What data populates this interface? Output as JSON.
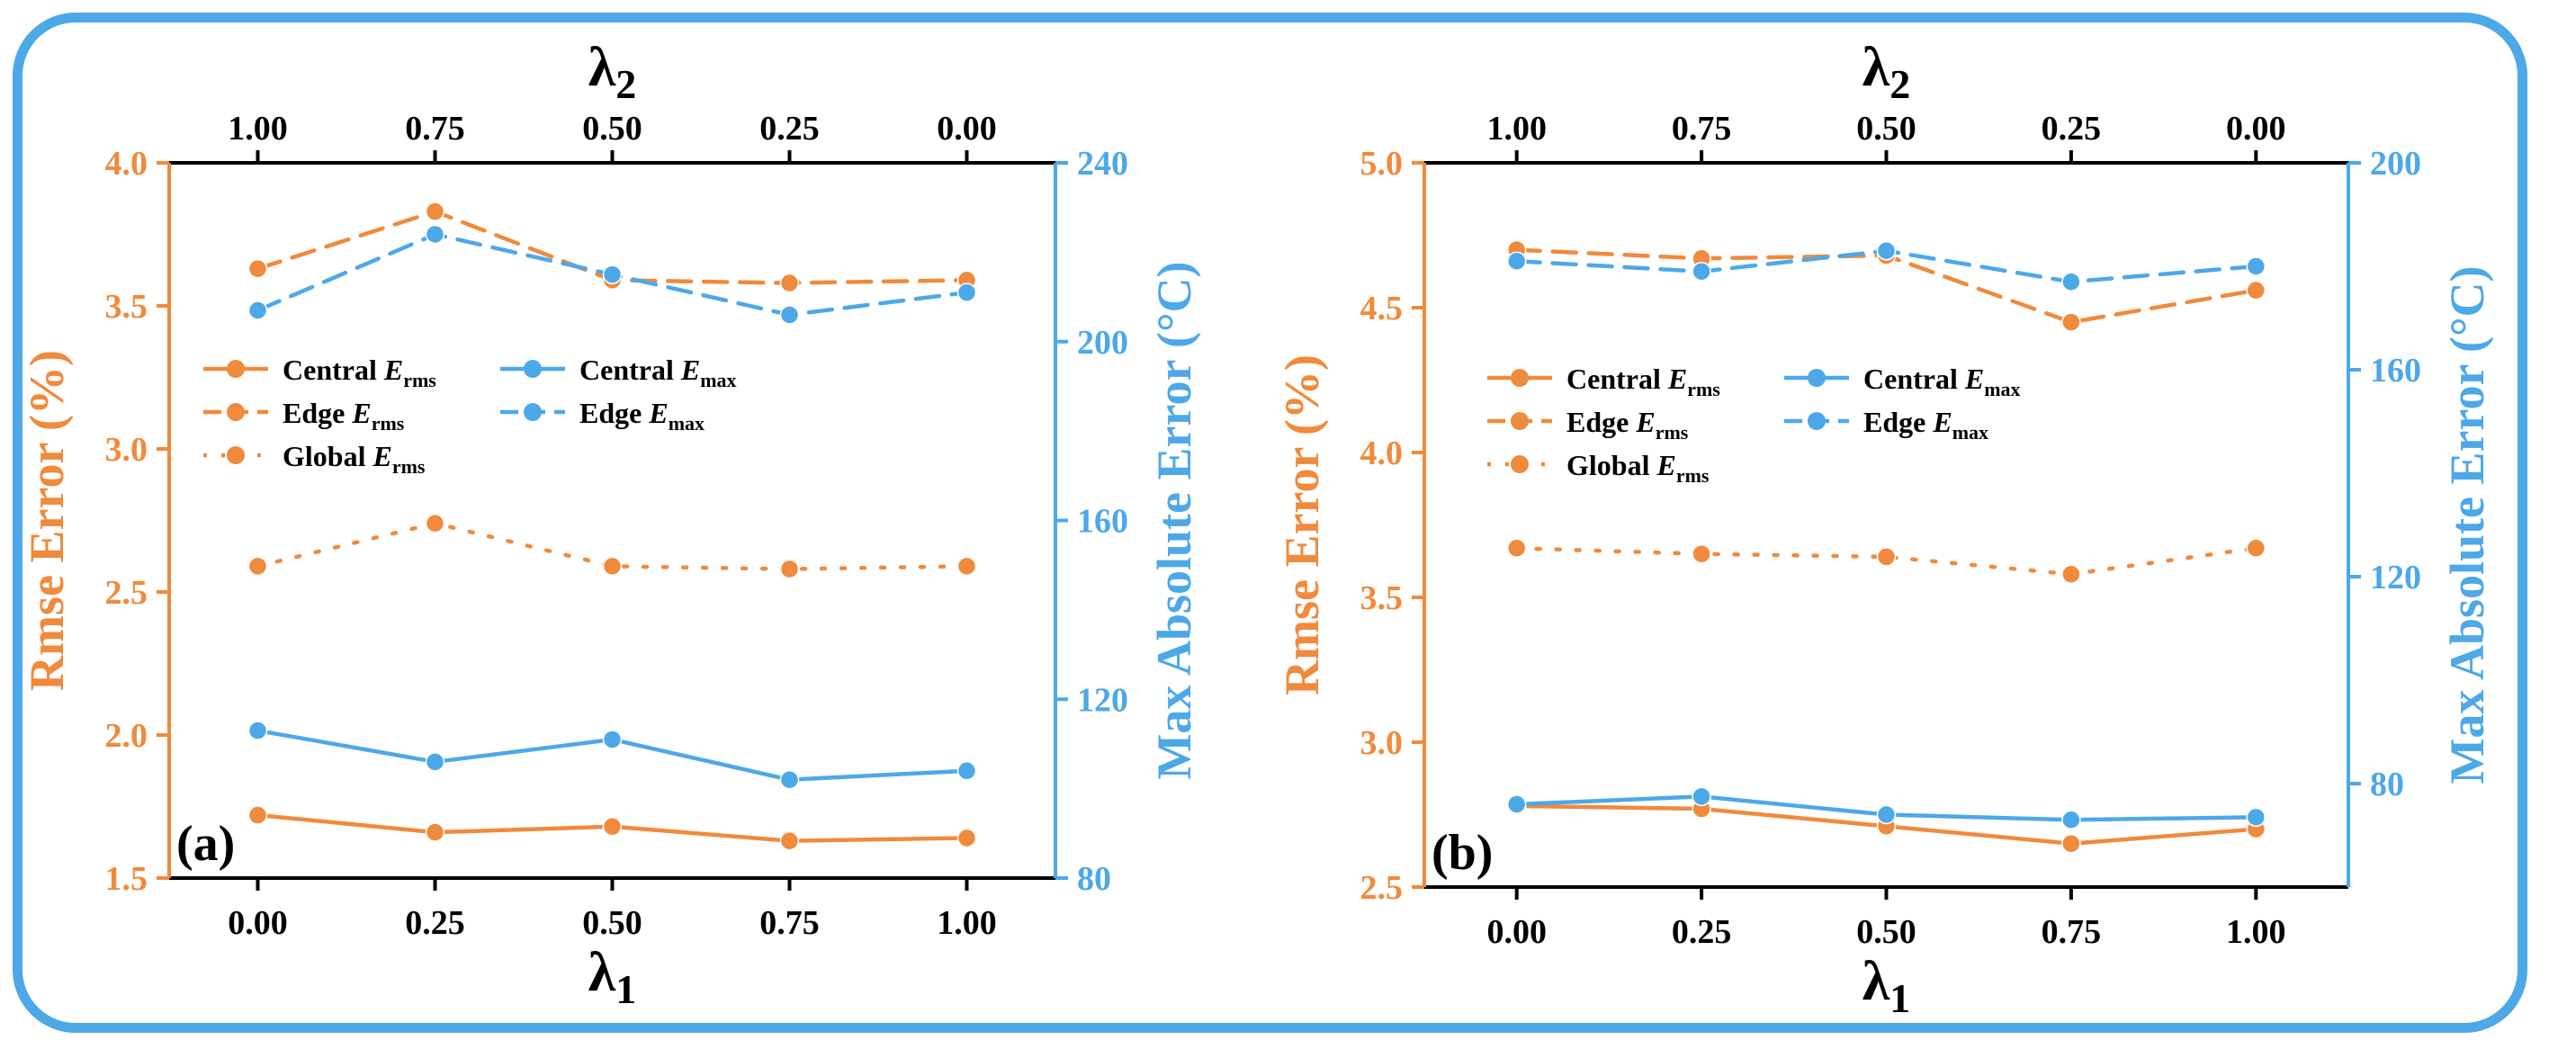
{
  "colors": {
    "orange": "#F08A3C",
    "blue": "#4DA8E8",
    "frame": "#4DA8E8",
    "axis": "#000000"
  },
  "chart_data": [
    {
      "type": "line",
      "panel_label": "(a)",
      "x": [
        0.0,
        0.25,
        0.5,
        0.75,
        1.0
      ],
      "x_tick_labels": [
        "0.00",
        "0.25",
        "0.50",
        "0.75",
        "1.00"
      ],
      "xlabel": "λ",
      "xlabel_sub": "1",
      "top_tick_labels": [
        "1.00",
        "0.75",
        "0.50",
        "0.25",
        "0.00"
      ],
      "top_label": "λ",
      "top_label_sub": "2",
      "ylabel_left": "Rmse Error (%)",
      "ylim_left": [
        1.5,
        4.0
      ],
      "y_ticks_left": [
        "1.5",
        "2.0",
        "2.5",
        "3.0",
        "3.5",
        "4.0"
      ],
      "ylabel_right": "Max Absolute Error (°C)",
      "ylim_right": [
        80,
        240
      ],
      "y_ticks_right": [
        "80",
        "120",
        "160",
        "200",
        "240"
      ],
      "legend_left": [
        {
          "name": "Central ",
          "sym": "E",
          "sub": "rms",
          "style": "solid"
        },
        {
          "name": "Edge ",
          "sym": "E",
          "sub": "rms",
          "style": "dashed"
        },
        {
          "name": "Global ",
          "sym": "E",
          "sub": "rms",
          "style": "dotted"
        }
      ],
      "legend_right": [
        {
          "name": "Central ",
          "sym": "E",
          "sub": "max",
          "style": "solid"
        },
        {
          "name": "Edge ",
          "sym": "E",
          "sub": "max",
          "style": "dashed"
        }
      ],
      "series": [
        {
          "name": "Central E_rms",
          "axis": "left",
          "color": "orange",
          "style": "solid",
          "values": [
            1.72,
            1.66,
            1.68,
            1.63,
            1.64
          ]
        },
        {
          "name": "Edge E_rms",
          "axis": "left",
          "color": "orange",
          "style": "dashed",
          "values": [
            3.63,
            3.83,
            3.59,
            3.58,
            3.59
          ]
        },
        {
          "name": "Global E_rms",
          "axis": "left",
          "color": "orange",
          "style": "dotted",
          "values": [
            2.59,
            2.74,
            2.59,
            2.58,
            2.59
          ]
        },
        {
          "name": "Central E_max",
          "axis": "right",
          "color": "blue",
          "style": "solid",
          "values": [
            113,
            106,
            111,
            102,
            104
          ]
        },
        {
          "name": "Edge E_max",
          "axis": "right",
          "color": "blue",
          "style": "dashed",
          "values": [
            207,
            224,
            215,
            206,
            211
          ]
        }
      ]
    },
    {
      "type": "line",
      "panel_label": "(b)",
      "x": [
        0.0,
        0.25,
        0.5,
        0.75,
        1.0
      ],
      "x_tick_labels": [
        "0.00",
        "0.25",
        "0.50",
        "0.75",
        "1.00"
      ],
      "xlabel": "λ",
      "xlabel_sub": "1",
      "top_tick_labels": [
        "1.00",
        "0.75",
        "0.50",
        "0.25",
        "0.00"
      ],
      "top_label": "λ",
      "top_label_sub": "2",
      "ylabel_left": "Rmse Error (%)",
      "ylim_left": [
        2.5,
        5.0
      ],
      "y_ticks_left": [
        "2.5",
        "3.0",
        "3.5",
        "4.0",
        "4.5",
        "5.0"
      ],
      "ylabel_right": "Max Absolute Error (°C)",
      "ylim_right": [
        60,
        200
      ],
      "y_ticks_right": [
        "80",
        "120",
        "160",
        "200"
      ],
      "y_tick_values_right": [
        80,
        120,
        160,
        200
      ],
      "legend_left": [
        {
          "name": "Central ",
          "sym": "E",
          "sub": "rms",
          "style": "solid"
        },
        {
          "name": "Edge ",
          "sym": "E",
          "sub": "rms",
          "style": "dashed"
        },
        {
          "name": "Global ",
          "sym": "E",
          "sub": "rms",
          "style": "dotted"
        }
      ],
      "legend_right": [
        {
          "name": "Central ",
          "sym": "E",
          "sub": "max",
          "style": "solid"
        },
        {
          "name": "Edge ",
          "sym": "E",
          "sub": "max",
          "style": "dashed"
        }
      ],
      "series": [
        {
          "name": "Central E_rms",
          "axis": "left",
          "color": "orange",
          "style": "solid",
          "values": [
            2.78,
            2.77,
            2.71,
            2.65,
            2.7
          ]
        },
        {
          "name": "Edge E_rms",
          "axis": "left",
          "color": "orange",
          "style": "dashed",
          "values": [
            4.7,
            4.67,
            4.68,
            4.45,
            4.56
          ]
        },
        {
          "name": "Global E_rms",
          "axis": "left",
          "color": "orange",
          "style": "dotted",
          "values": [
            3.67,
            3.65,
            3.64,
            3.58,
            3.67
          ]
        },
        {
          "name": "Central E_max",
          "axis": "right",
          "color": "blue",
          "style": "solid",
          "values": [
            76,
            77.5,
            74,
            73,
            73.5
          ]
        },
        {
          "name": "Edge E_max",
          "axis": "right",
          "color": "blue",
          "style": "dashed",
          "values": [
            181,
            179,
            183,
            177,
            180
          ]
        }
      ]
    }
  ]
}
